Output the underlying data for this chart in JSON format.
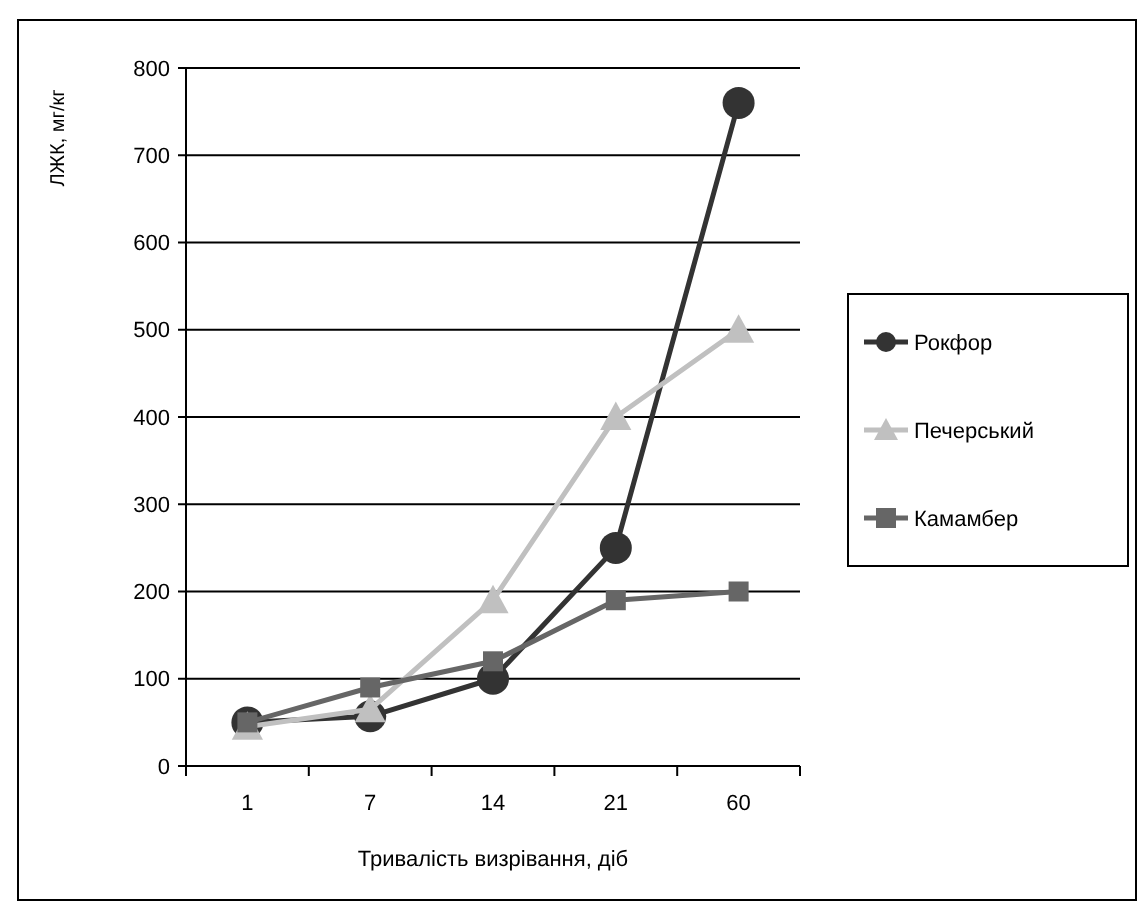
{
  "chart_data": {
    "type": "line",
    "xlabel": "Тривалість визрівання, діб",
    "ylabel": "ЛЖК, мг/кг",
    "categories": [
      "1",
      "7",
      "14",
      "21",
      "60"
    ],
    "ylim": [
      0,
      800
    ],
    "yticks": [
      0,
      100,
      200,
      300,
      400,
      500,
      600,
      700,
      800
    ],
    "grid": "y",
    "legend": "right",
    "series": [
      {
        "name": "Рокфор",
        "color": "#333333",
        "marker": "circle",
        "values": [
          50,
          57,
          100,
          250,
          760
        ]
      },
      {
        "name": "Печерський",
        "color": "#c0c0c0",
        "marker": "triangle",
        "values": [
          45,
          65,
          190,
          400,
          500
        ]
      },
      {
        "name": "Камамбер",
        "color": "#666666",
        "marker": "square",
        "values": [
          50,
          90,
          120,
          190,
          200
        ]
      }
    ]
  }
}
